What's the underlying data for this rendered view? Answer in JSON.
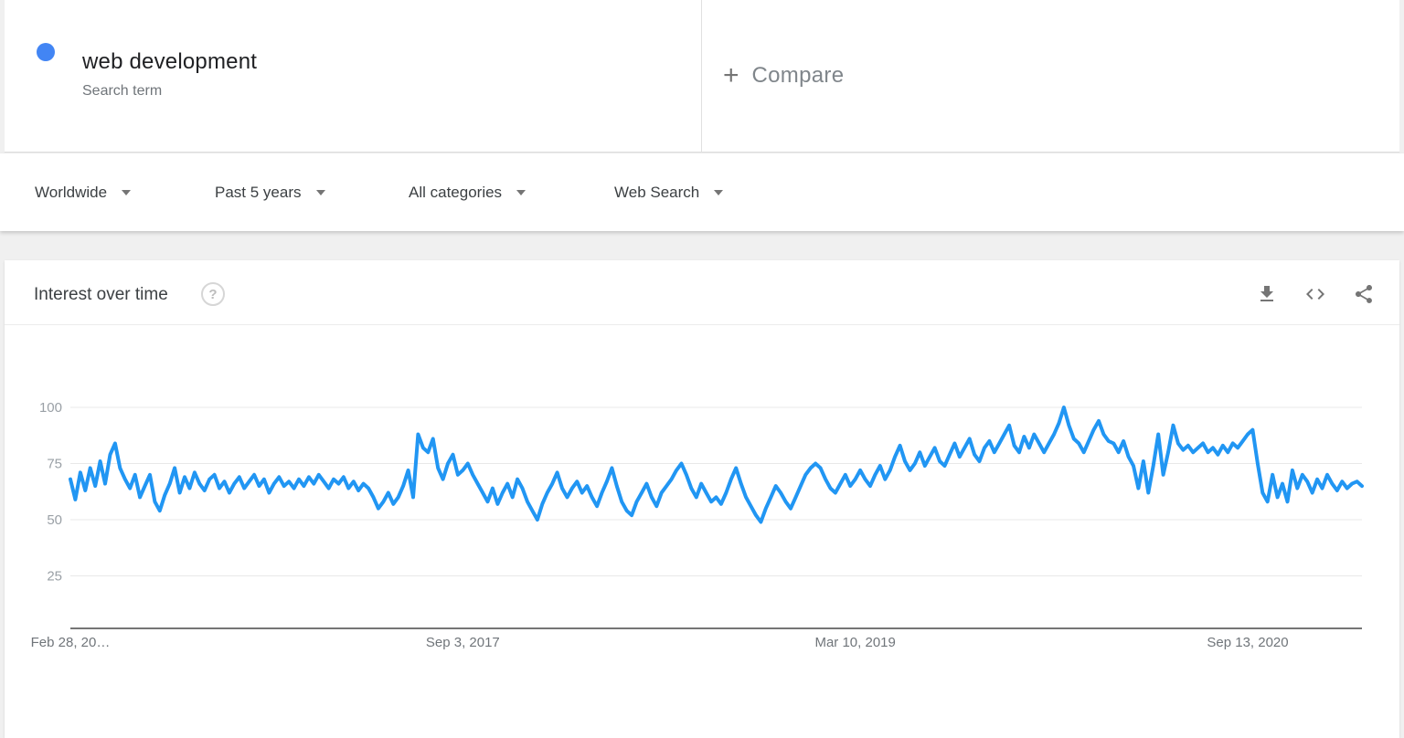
{
  "term_card": {
    "term": "web development",
    "type_label": "Search term",
    "dot_color": "#4285f4"
  },
  "compare_card": {
    "plus": "+",
    "label": "Compare"
  },
  "filters": [
    {
      "id": "geo",
      "label": "Worldwide"
    },
    {
      "id": "time",
      "label": "Past 5 years"
    },
    {
      "id": "category",
      "label": "All categories"
    },
    {
      "id": "property",
      "label": "Web Search"
    }
  ],
  "panel": {
    "title": "Interest over time",
    "help_glyph": "?",
    "header_icons": [
      {
        "name": "download-icon"
      },
      {
        "name": "embed-icon"
      },
      {
        "name": "share-icon"
      }
    ]
  },
  "chart_data": {
    "type": "line",
    "title": "Interest over time",
    "xlabel": "",
    "ylabel": "",
    "ylim": [
      0,
      100
    ],
    "grid": true,
    "legend": "none",
    "y_ticks": [
      25,
      50,
      75,
      100
    ],
    "x_tick_labels": [
      "Feb 28, 20…",
      "Sep 3, 2017",
      "Mar 10, 2019",
      "Sep 13, 2020"
    ],
    "x_tick_indices": [
      0,
      79,
      158,
      237
    ],
    "line_color": "#2196f3",
    "grid_color": "#e8e8e8",
    "axis_color": "#757575",
    "y_label_color": "#9aa0a6",
    "x_label_color": "#70757a",
    "series": [
      {
        "name": "web development",
        "color": "#2196f3",
        "values": [
          68,
          59,
          71,
          63,
          73,
          65,
          76,
          66,
          79,
          84,
          73,
          68,
          64,
          70,
          60,
          65,
          70,
          58,
          54,
          61,
          66,
          73,
          62,
          69,
          64,
          71,
          66,
          63,
          68,
          70,
          64,
          67,
          62,
          66,
          69,
          64,
          67,
          70,
          65,
          68,
          62,
          66,
          69,
          65,
          67,
          64,
          68,
          65,
          69,
          66,
          70,
          67,
          64,
          68,
          66,
          69,
          64,
          67,
          63,
          66,
          64,
          60,
          55,
          58,
          62,
          57,
          60,
          65,
          72,
          60,
          88,
          82,
          80,
          86,
          73,
          68,
          75,
          79,
          70,
          72,
          75,
          70,
          66,
          62,
          58,
          64,
          57,
          62,
          66,
          60,
          68,
          64,
          58,
          54,
          50,
          57,
          62,
          66,
          71,
          64,
          60,
          64,
          67,
          62,
          65,
          60,
          56,
          62,
          67,
          73,
          65,
          58,
          54,
          52,
          58,
          62,
          66,
          60,
          56,
          62,
          65,
          68,
          72,
          75,
          70,
          64,
          60,
          66,
          62,
          58,
          60,
          57,
          62,
          68,
          73,
          66,
          60,
          56,
          52,
          49,
          55,
          60,
          65,
          62,
          58,
          55,
          60,
          65,
          70,
          73,
          75,
          73,
          68,
          64,
          62,
          66,
          70,
          65,
          68,
          72,
          68,
          65,
          70,
          74,
          68,
          72,
          78,
          83,
          76,
          72,
          75,
          80,
          74,
          78,
          82,
          76,
          74,
          79,
          84,
          78,
          82,
          86,
          79,
          76,
          82,
          85,
          80,
          84,
          88,
          92,
          83,
          80,
          87,
          82,
          88,
          84,
          80,
          84,
          88,
          93,
          100,
          92,
          86,
          84,
          80,
          85,
          90,
          94,
          88,
          85,
          84,
          80,
          85,
          78,
          74,
          64,
          76,
          62,
          74,
          88,
          70,
          80,
          92,
          84,
          81,
          83,
          80,
          82,
          84,
          80,
          82,
          79,
          83,
          80,
          84,
          82,
          85,
          88,
          90,
          75,
          62,
          58,
          70,
          60,
          66,
          58,
          72,
          64,
          70,
          67,
          62,
          68,
          64,
          70,
          66,
          63,
          67,
          64,
          66,
          67,
          65
        ]
      }
    ]
  }
}
